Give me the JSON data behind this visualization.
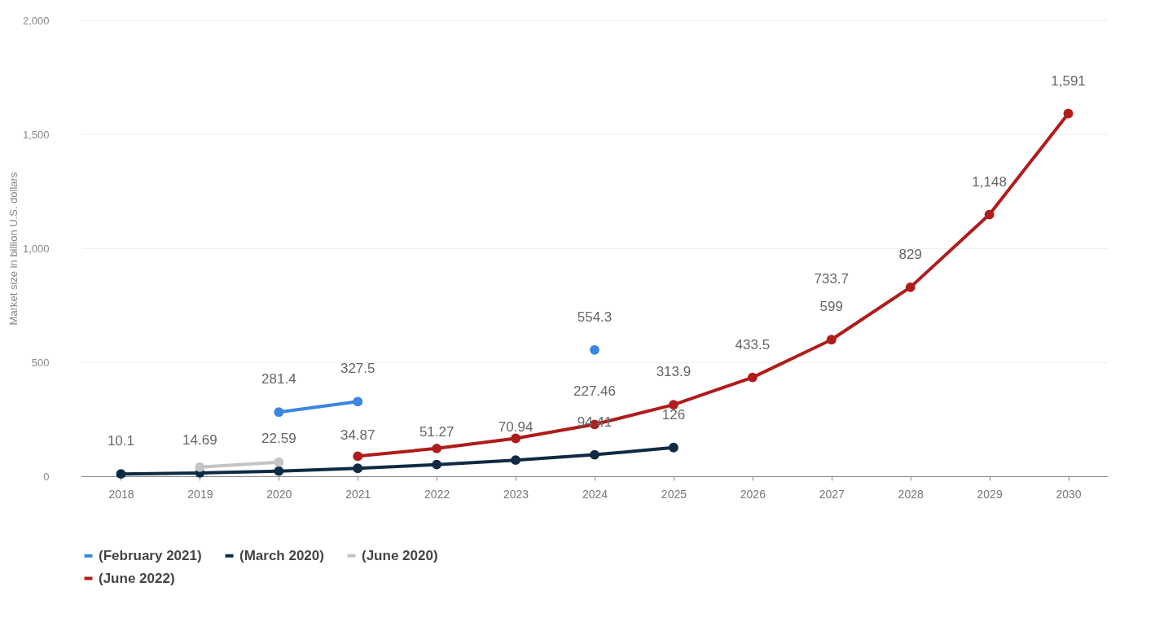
{
  "chart_data": {
    "type": "line",
    "ylabel": "Market size in billion U.S. dollars",
    "categories": [
      "2018",
      "2019",
      "2020",
      "2021",
      "2022",
      "2023",
      "2024",
      "2025",
      "2026",
      "2027",
      "2028",
      "2029",
      "2030"
    ],
    "series": [
      {
        "name": "(February 2021)",
        "color": "#3a86e0",
        "values": [
          null,
          null,
          281.4,
          327.5,
          null,
          null,
          554.3,
          null,
          null,
          null,
          null,
          null,
          null
        ],
        "value_labels": [
          null,
          null,
          "281.4",
          "327.5",
          null,
          null,
          "554.3",
          null,
          null,
          null,
          null,
          null,
          null
        ]
      },
      {
        "name": "(March 2020)",
        "color": "#0f2a44",
        "values": [
          10.1,
          14.69,
          22.59,
          34.87,
          51.27,
          70.94,
          94.41,
          126,
          null,
          null,
          null,
          null,
          null
        ],
        "value_labels": [
          "10.1",
          "14.69",
          "22.59",
          "34.87",
          "51.27",
          "70.94",
          "94.41",
          "126",
          null,
          null,
          null,
          null,
          null
        ]
      },
      {
        "name": "(June 2020)",
        "color": "#c4c4c4",
        "values": [
          null,
          40,
          62,
          null,
          null,
          null,
          null,
          null,
          null,
          null,
          null,
          null,
          null
        ]
      },
      {
        "name": "(June 2022)",
        "color": "#b01c1c",
        "values": [
          null,
          null,
          null,
          88,
          122,
          166,
          227.46,
          313.9,
          433.5,
          599,
          829,
          1148,
          1591
        ],
        "value_labels": [
          null,
          null,
          null,
          null,
          null,
          null,
          "227.46",
          "313.9",
          "433.5",
          "599",
          "829",
          "1,148",
          "1,591"
        ]
      }
    ],
    "annotations": [
      "733.7"
    ],
    "ylim": [
      0,
      2000
    ],
    "yticks": [
      0,
      500,
      {
        "value": 1000,
        "label": "1,000"
      },
      {
        "value": 1500,
        "label": "1,500"
      },
      {
        "value": 2000,
        "label": "2,000"
      }
    ],
    "grid": "y",
    "legend": "bottom",
    "marker": "circle"
  }
}
